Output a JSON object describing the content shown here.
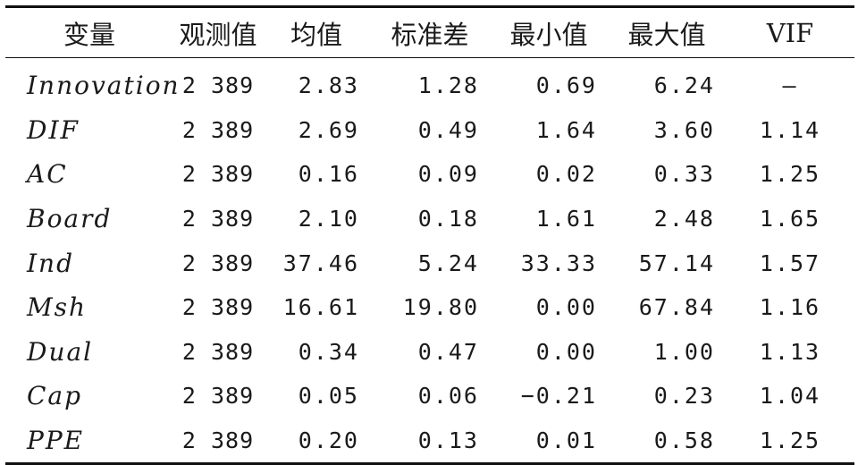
{
  "table": {
    "headers": [
      "变量",
      "观测值",
      "均值",
      "标准差",
      "最小值",
      "最大值",
      "VIF"
    ],
    "rows": [
      [
        "Innovation",
        "2 389",
        "2.83",
        "1.28",
        "0.69",
        "6.24",
        "—"
      ],
      [
        "DIF",
        "2 389",
        "2.69",
        "0.49",
        "1.64",
        "3.60",
        "1.14"
      ],
      [
        "AC",
        "2 389",
        "0.16",
        "0.09",
        "0.02",
        "0.33",
        "1.25"
      ],
      [
        "Board",
        "2 389",
        "2.10",
        "0.18",
        "1.61",
        "2.48",
        "1.65"
      ],
      [
        "Ind",
        "2 389",
        "37.46",
        "5.24",
        "33.33",
        "57.14",
        "1.57"
      ],
      [
        "Msh",
        "2 389",
        "16.61",
        "19.80",
        "0.00",
        "67.84",
        "1.16"
      ],
      [
        "Dual",
        "2 389",
        "0.34",
        "0.47",
        "0.00",
        "1.00",
        "1.13"
      ],
      [
        "Cap",
        "2 389",
        "0.05",
        "0.06",
        "−0.21",
        "0.23",
        "1.04"
      ],
      [
        "PPE",
        "2 389",
        "0.20",
        "0.13",
        "0.01",
        "0.58",
        "1.25"
      ]
    ]
  }
}
